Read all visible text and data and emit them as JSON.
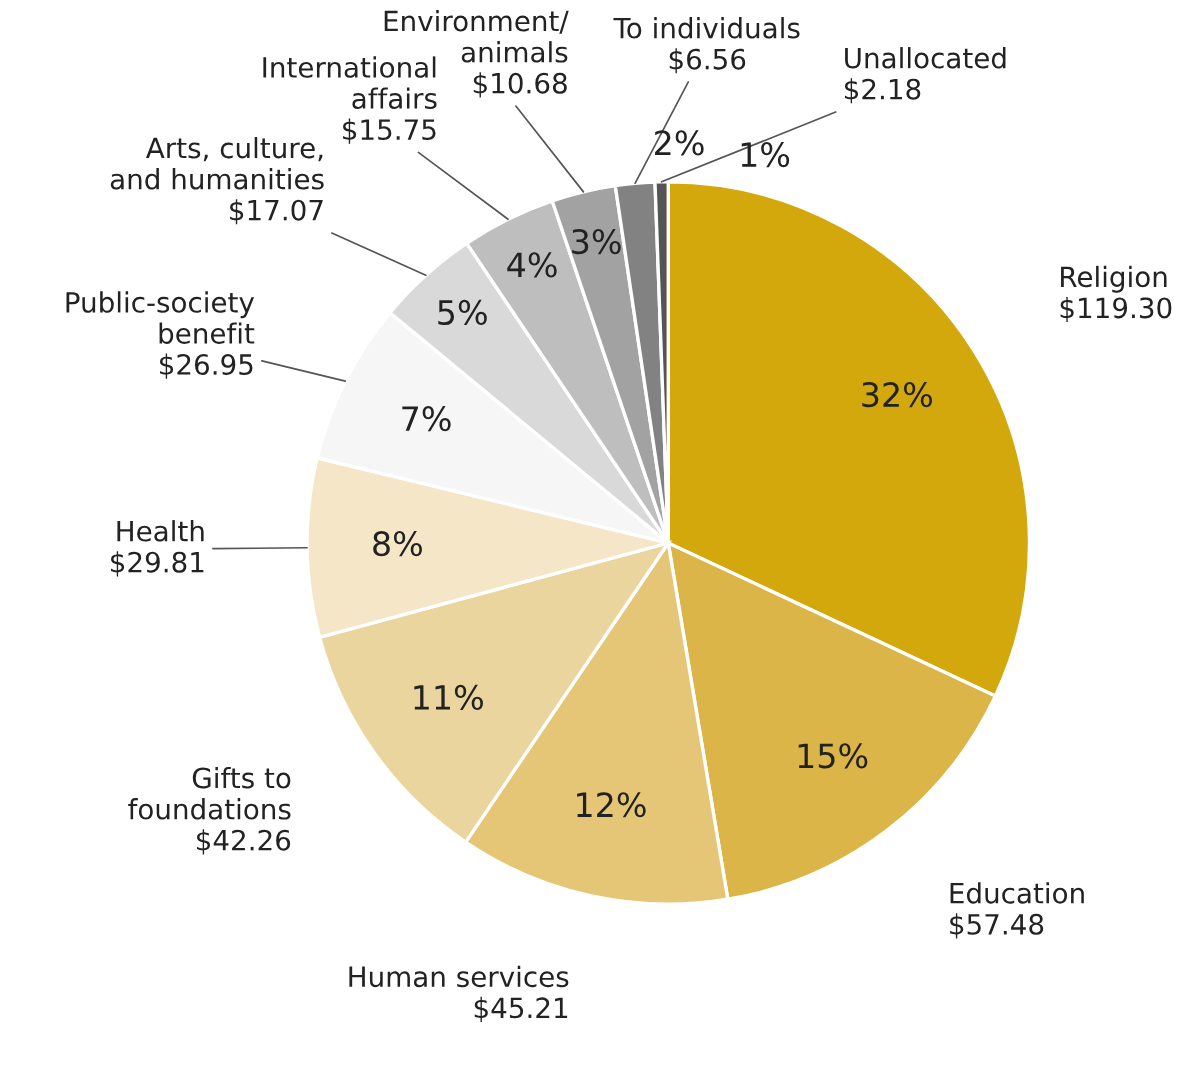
{
  "chart_data": {
    "type": "pie",
    "categories": [
      "Religion",
      "Education",
      "Human services",
      "Gifts to\nfoundations",
      "Health",
      "Public-society\nbenefit",
      "Arts, culture,\nand humanities",
      "International\naffairs",
      "Environment/\nanimals",
      "To individuals",
      "Unallocated"
    ],
    "values": [
      119.3,
      57.48,
      45.21,
      42.26,
      29.81,
      26.95,
      17.07,
      15.75,
      10.68,
      6.56,
      2.18
    ],
    "value_labels": [
      "$119.30",
      "$57.48",
      "$45.21",
      "$42.26",
      "$29.81",
      "$26.95",
      "$17.07",
      "$15.75",
      "$10.68",
      "$6.56",
      "$2.18"
    ],
    "colors": [
      "#d3a80c",
      "#dcb548",
      "#e4c676",
      "#ebd59f",
      "#f4e6c6",
      "#f6f6f6",
      "#d9d9d9",
      "#bebebe",
      "#a2a2a2",
      "#828282",
      "#555555"
    ],
    "annotations": [
      {
        "text": "32%",
        "x": "Religion"
      },
      {
        "text": "15%",
        "x": "Education"
      },
      {
        "text": "12%",
        "x": "Human services"
      },
      {
        "text": "11%",
        "x": "Gifts to\nfoundations"
      },
      {
        "text": "8%",
        "x": "Health"
      },
      {
        "text": "7%",
        "x": "Public-society\nbenefit"
      },
      {
        "text": "5%",
        "x": "Arts, culture,\nand humanities"
      },
      {
        "text": "4%",
        "x": "International\naffairs"
      },
      {
        "text": "3%",
        "x": "Environment/\nanimals"
      },
      {
        "text": "2%",
        "x": "To individuals"
      },
      {
        "text": "1%",
        "x": "Unallocated"
      }
    ]
  }
}
